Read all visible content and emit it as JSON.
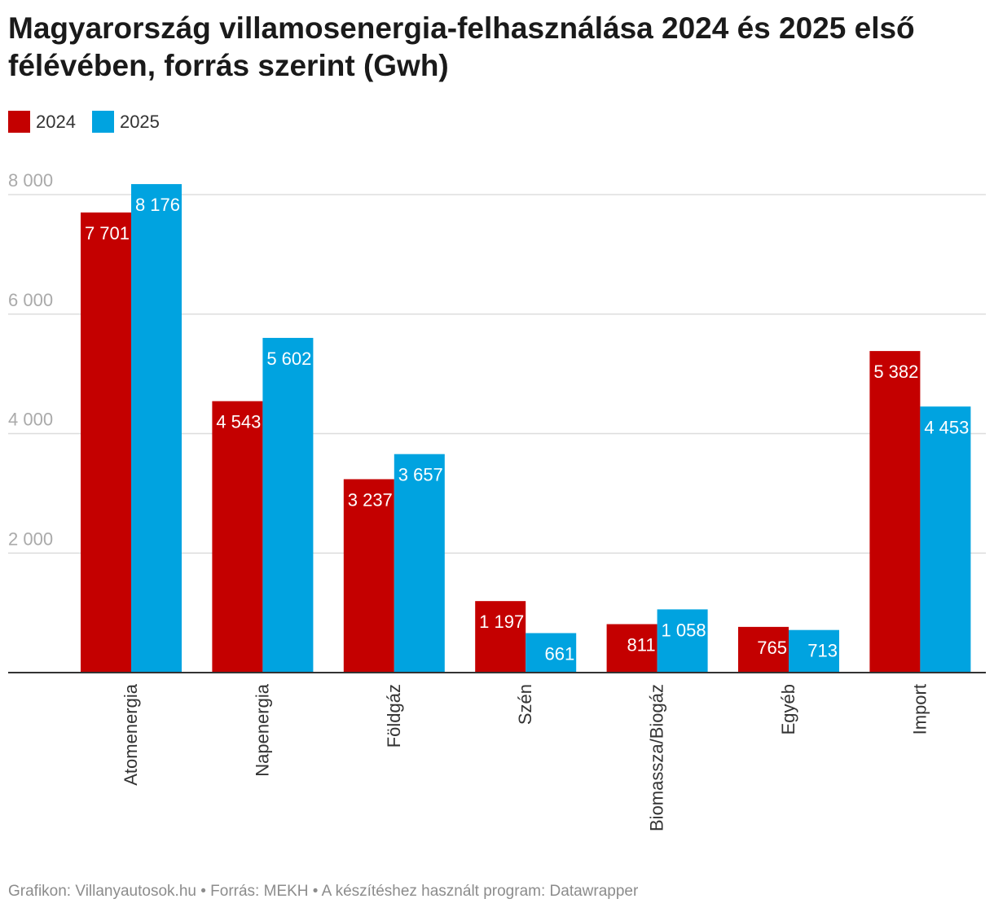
{
  "title": "Magyarország villamosenergia-felhasználása 2024 és 2025 első félévében, forrás szerint (Gwh)",
  "legend": [
    {
      "label": "2024",
      "color": "#c40000"
    },
    {
      "label": "2025",
      "color": "#00a3e0"
    }
  ],
  "footer": "Grafikon: Villanyautosok.hu • Forrás: MEKH • A készítéshez használt program: Datawrapper",
  "chart_data": {
    "type": "bar",
    "title": "Magyarország villamosenergia-felhasználása 2024 és 2025 első félévében, forrás szerint (Gwh)",
    "categories": [
      "Atomenergia",
      "Napenergia",
      "Földgáz",
      "Szén",
      "Biomassza/Biogáz",
      "Egyéb",
      "Import"
    ],
    "series": [
      {
        "name": "2024",
        "color": "#c40000",
        "values": [
          7701,
          4543,
          3237,
          1197,
          811,
          765,
          5382
        ]
      },
      {
        "name": "2025",
        "color": "#00a3e0",
        "values": [
          8176,
          5602,
          3657,
          661,
          1058,
          713,
          4453
        ]
      }
    ],
    "yticks": [
      2000,
      4000,
      6000,
      8000
    ],
    "ytick_labels": [
      "2 000",
      "4 000",
      "6 000",
      "8 000"
    ],
    "ylim": [
      0,
      8000
    ],
    "grid": true,
    "legend_position": "top-left"
  }
}
